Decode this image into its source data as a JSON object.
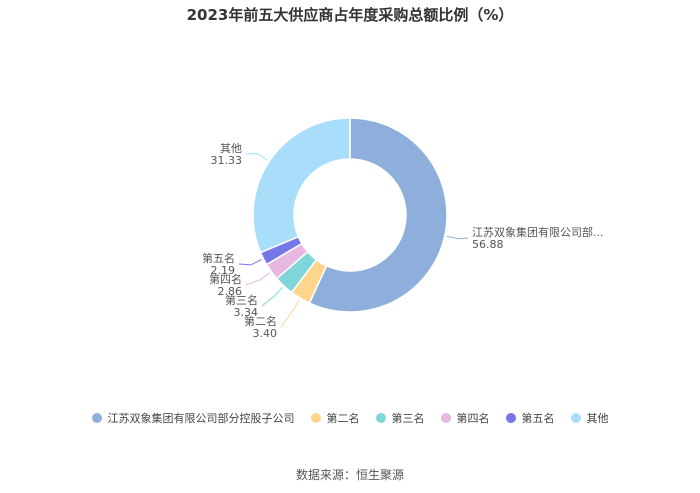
{
  "chart_data": {
    "type": "pie",
    "title": "2023年前五大供应商占年度采购总额比例（%）",
    "labels": [
      "江苏双象集团有限公司部分控股子公司",
      "第二名",
      "第三名",
      "第四名",
      "第五名",
      "其他"
    ],
    "slice_labels": [
      "江苏双象集团有限公司部...",
      "第二名",
      "第三名",
      "第四名",
      "第五名",
      "其他"
    ],
    "values": [
      56.88,
      3.4,
      3.34,
      2.86,
      2.19,
      31.33
    ],
    "value_labels": [
      "56.88",
      "3.40",
      "3.34",
      "2.86",
      "2.19",
      "31.33"
    ],
    "colors": [
      "#8eaedb",
      "#fdd58c",
      "#7fd6d8",
      "#e6b7e0",
      "#7576e8",
      "#a8defa"
    ],
    "legend_position": "bottom"
  },
  "source": "数据来源：恒生聚源"
}
